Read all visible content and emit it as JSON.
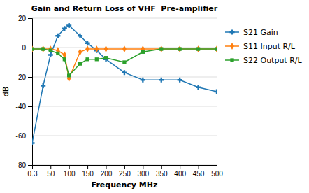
{
  "chart_data": {
    "type": "line",
    "title": "Gain and Return Loss of VHF  Pre-amplifier",
    "xlabel": "Frequency MHz",
    "ylabel": "dB",
    "x": [
      0.3,
      30,
      50,
      70,
      88,
      100,
      130,
      150,
      175,
      200,
      250,
      300,
      350,
      400,
      450,
      500
    ],
    "xlim": [
      0.3,
      500
    ],
    "ylim": [
      -80,
      20
    ],
    "xticks": [
      0.3,
      50,
      100,
      150,
      200,
      250,
      300,
      350,
      400,
      450,
      500
    ],
    "yticks": [
      -80,
      -60,
      -40,
      -20,
      0,
      20
    ],
    "grid": true,
    "legend": "right",
    "series": [
      {
        "name": "S21 Gain",
        "marker": "plus",
        "values": [
          -65,
          -26,
          -5,
          8,
          13,
          15,
          8,
          3,
          -2,
          -8,
          -17,
          -22,
          -22,
          -22,
          -27,
          -30
        ]
      },
      {
        "name": "S11 Input R/L",
        "marker": "diamond",
        "values": [
          -1,
          -1,
          -1,
          -2,
          -5,
          -21,
          -3,
          -1,
          -1,
          -1,
          -1,
          -1,
          -1,
          -1,
          -1,
          -1
        ]
      },
      {
        "name": "S22 Output R/L",
        "marker": "square",
        "values": [
          -1,
          -1,
          -2,
          -4,
          -8,
          -19,
          -11,
          -8,
          -8,
          -7,
          -10,
          -3,
          -1,
          -1,
          -1,
          -1
        ]
      }
    ]
  }
}
